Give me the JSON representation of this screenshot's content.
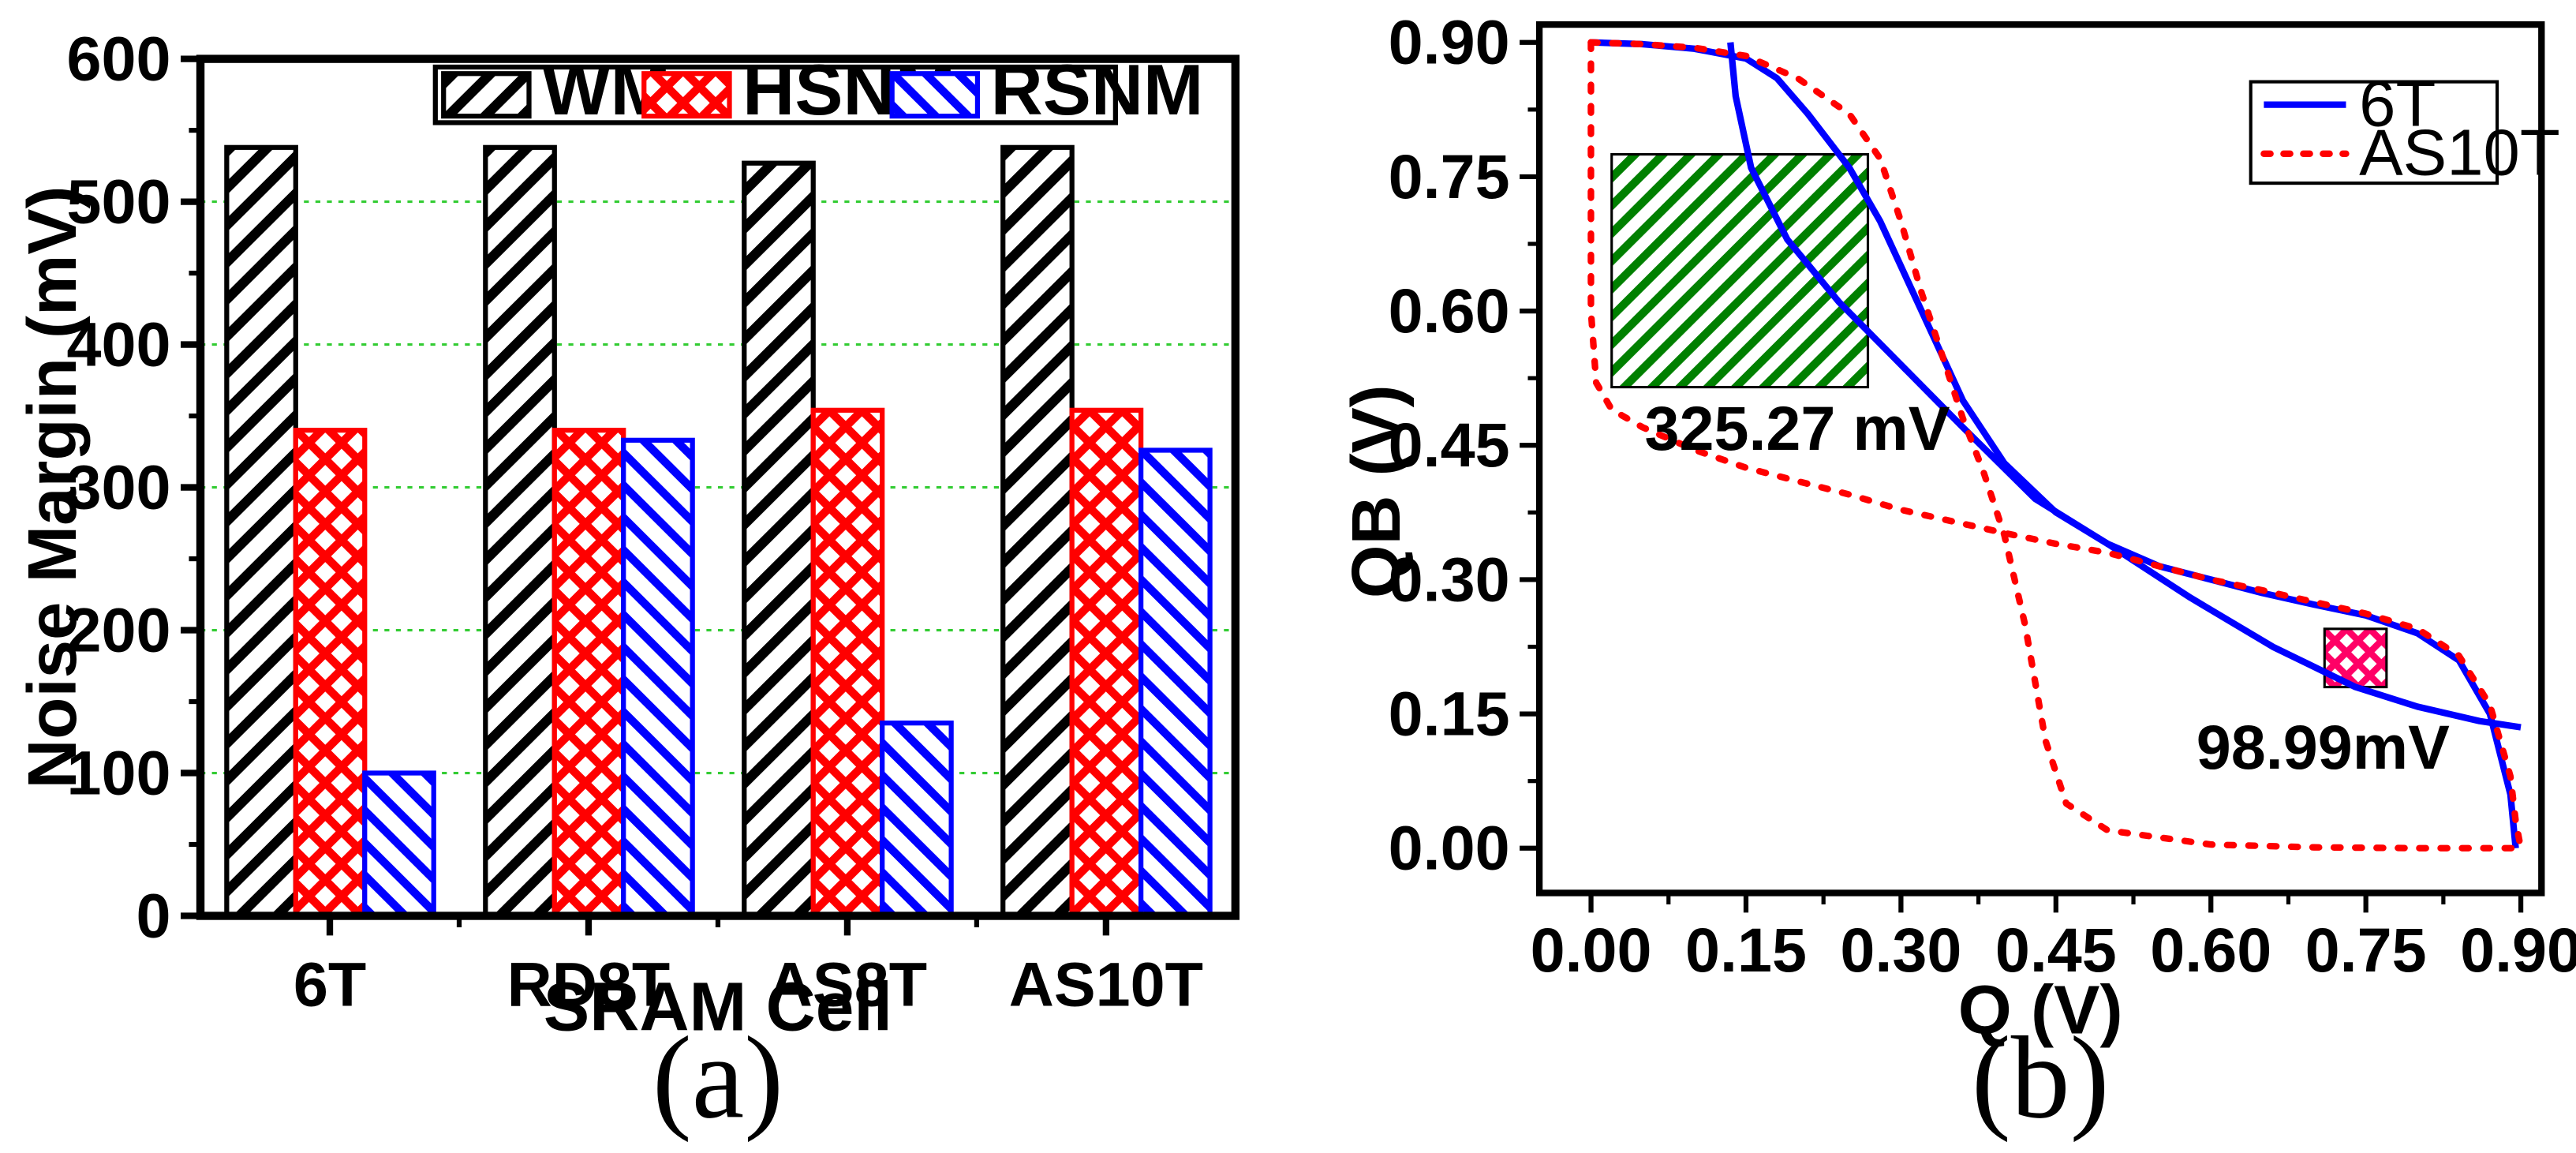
{
  "chart_data": [
    {
      "type": "bar",
      "panel_label": "(a)",
      "title": "",
      "xlabel": "SRAM Cell",
      "ylabel": "Noise Margin (mV)",
      "ylim": [
        0,
        600
      ],
      "yticks": [
        0,
        100,
        200,
        300,
        400,
        500,
        600
      ],
      "grid": "horizontal dotted green",
      "legend_position": "top",
      "categories": [
        "6T",
        "RD8T",
        "AS8T",
        "AS10T"
      ],
      "series": [
        {
          "name": "WM",
          "color": "#000000",
          "pattern": "diagonal-hatch",
          "values": [
            538,
            538,
            527,
            538
          ]
        },
        {
          "name": "HSNM",
          "color": "#ff0000",
          "pattern": "crosshatch",
          "values": [
            340,
            340,
            354,
            354
          ]
        },
        {
          "name": "RSNM",
          "color": "#0000ff",
          "pattern": "diagonal-hatch",
          "values": [
            100,
            333,
            135,
            326
          ]
        }
      ]
    },
    {
      "type": "line",
      "panel_label": "(b)",
      "title": "",
      "xlabel": "Q (V)",
      "ylabel": "QB (V)",
      "xlim": [
        -0.05,
        0.92
      ],
      "ylim": [
        -0.05,
        0.92
      ],
      "xticks": [
        "0.00",
        "0.15",
        "0.30",
        "0.45",
        "0.60",
        "0.75",
        "0.90"
      ],
      "yticks": [
        "0.00",
        "0.15",
        "0.30",
        "0.45",
        "0.60",
        "0.75",
        "0.90"
      ],
      "legend_position": "top-right",
      "series": [
        {
          "name": "6T",
          "color": "#0000ff",
          "style": "solid",
          "curves": [
            [
              [
                0.0,
                0.9
              ],
              [
                0.05,
                0.898
              ],
              [
                0.1,
                0.893
              ],
              [
                0.15,
                0.882
              ],
              [
                0.18,
                0.86
              ],
              [
                0.21,
                0.82
              ],
              [
                0.25,
                0.76
              ],
              [
                0.28,
                0.7
              ],
              [
                0.32,
                0.6
              ],
              [
                0.36,
                0.5
              ],
              [
                0.4,
                0.43
              ],
              [
                0.45,
                0.375
              ],
              [
                0.5,
                0.34
              ],
              [
                0.55,
                0.315
              ],
              [
                0.6,
                0.3
              ],
              [
                0.65,
                0.285
              ],
              [
                0.7,
                0.272
              ],
              [
                0.75,
                0.26
              ],
              [
                0.8,
                0.24
              ],
              [
                0.84,
                0.21
              ],
              [
                0.87,
                0.15
              ],
              [
                0.89,
                0.06
              ],
              [
                0.895,
                0.0
              ]
            ],
            [
              [
                0.135,
                0.9
              ],
              [
                0.14,
                0.84
              ],
              [
                0.155,
                0.76
              ],
              [
                0.19,
                0.68
              ],
              [
                0.24,
                0.61
              ],
              [
                0.3,
                0.54
              ],
              [
                0.36,
                0.47
              ],
              [
                0.43,
                0.39
              ],
              [
                0.5,
                0.34
              ],
              [
                0.58,
                0.28
              ],
              [
                0.66,
                0.225
              ],
              [
                0.74,
                0.18
              ],
              [
                0.8,
                0.158
              ],
              [
                0.86,
                0.142
              ],
              [
                0.9,
                0.135
              ]
            ]
          ]
        },
        {
          "name": "AS10T",
          "color": "#ff0000",
          "style": "dotted",
          "curves": [
            [
              [
                0.0,
                0.9
              ],
              [
                0.05,
                0.898
              ],
              [
                0.1,
                0.894
              ],
              [
                0.15,
                0.885
              ],
              [
                0.2,
                0.86
              ],
              [
                0.25,
                0.82
              ],
              [
                0.28,
                0.77
              ],
              [
                0.3,
                0.7
              ],
              [
                0.32,
                0.62
              ],
              [
                0.34,
                0.55
              ],
              [
                0.36,
                0.48
              ],
              [
                0.38,
                0.42
              ],
              [
                0.4,
                0.35
              ],
              [
                0.42,
                0.25
              ],
              [
                0.44,
                0.12
              ],
              [
                0.46,
                0.05
              ],
              [
                0.5,
                0.02
              ],
              [
                0.6,
                0.004
              ],
              [
                0.7,
                0.001
              ],
              [
                0.8,
                0.0
              ],
              [
                0.9,
                0.0
              ]
            ],
            [
              [
                0.0,
                0.9
              ],
              [
                0.0,
                0.6
              ],
              [
                0.005,
                0.52
              ],
              [
                0.02,
                0.49
              ],
              [
                0.05,
                0.47
              ],
              [
                0.1,
                0.445
              ],
              [
                0.15,
                0.425
              ],
              [
                0.2,
                0.41
              ],
              [
                0.25,
                0.395
              ],
              [
                0.3,
                0.378
              ],
              [
                0.35,
                0.365
              ],
              [
                0.4,
                0.352
              ],
              [
                0.45,
                0.34
              ],
              [
                0.5,
                0.33
              ],
              [
                0.55,
                0.315
              ],
              [
                0.6,
                0.3
              ],
              [
                0.65,
                0.288
              ],
              [
                0.7,
                0.275
              ],
              [
                0.75,
                0.262
              ],
              [
                0.8,
                0.245
              ],
              [
                0.84,
                0.215
              ],
              [
                0.87,
                0.16
              ],
              [
                0.89,
                0.08
              ],
              [
                0.895,
                0.03
              ],
              [
                0.9,
                0.0
              ]
            ]
          ]
        }
      ],
      "annotations": [
        {
          "label": "325.27 mV",
          "box": {
            "q": [
              0.02,
              0.268
            ],
            "qb": [
              0.515,
              0.775
            ]
          },
          "fill": "#008000",
          "pattern": "diagonal-hatch"
        },
        {
          "label": "98.99mV",
          "box": {
            "q": [
              0.71,
              0.77
            ],
            "qb": [
              0.18,
              0.245
            ]
          },
          "fill": "#ff0066",
          "pattern": "crosshatch"
        }
      ]
    }
  ]
}
